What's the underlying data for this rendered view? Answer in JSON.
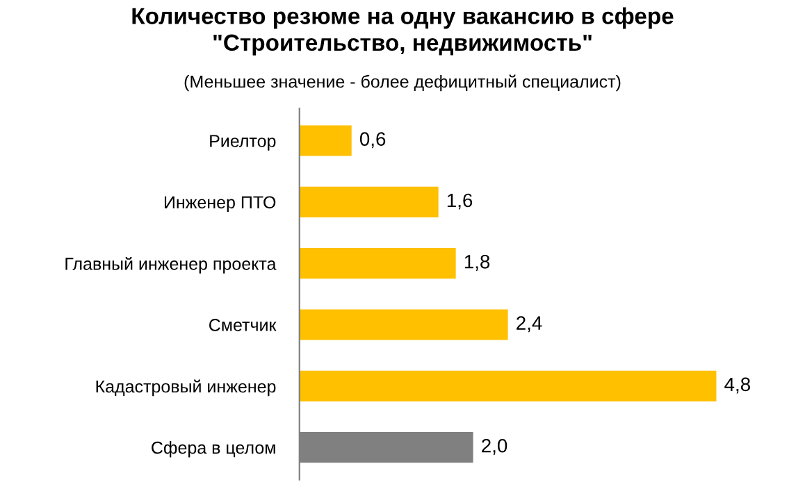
{
  "chart_data": {
    "type": "bar",
    "orientation": "horizontal",
    "title": "Количество резюме на одну вакансию в сфере\n\"Строительство, недвижимость\"",
    "subtitle": "(Меньшее значение - более дефицитный специалист)",
    "categories": [
      "Риелтор",
      "Инженер ПТО",
      "Главный инженер проекта",
      "Сметчик",
      "Кадастровый инженер",
      "Сфера в целом"
    ],
    "values": [
      0.6,
      1.6,
      1.8,
      2.4,
      4.8,
      2.0
    ],
    "value_labels": [
      "0,6",
      "1,6",
      "1,8",
      "2,4",
      "4,8",
      "2,0"
    ],
    "colors": [
      "#ffc000",
      "#ffc000",
      "#ffc000",
      "#ffc000",
      "#ffc000",
      "#808080"
    ],
    "grid": false,
    "legend": false
  }
}
